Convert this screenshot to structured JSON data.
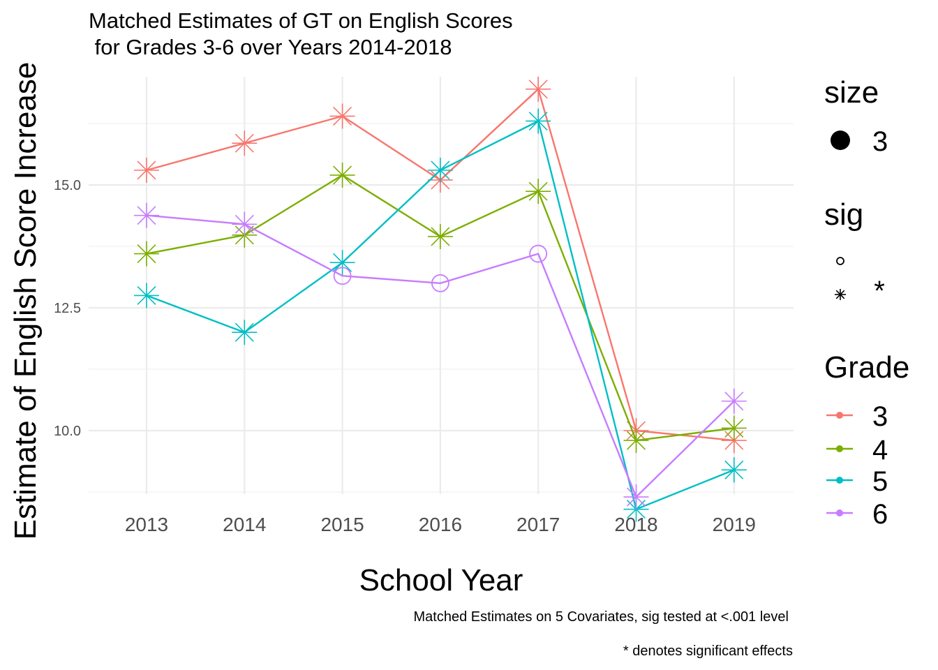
{
  "chart_data": {
    "type": "line",
    "title_line1": "Matched Estimates of GT on English Scores",
    "title_line2": " for Grades 3-6 over Years 2014-2018",
    "xlabel": "School Year",
    "ylabel": "Estimate of English Score Increase",
    "caption_line1": "Matched Estimates on 5 Covariates, sig tested at <.001 level",
    "caption_line2": "* denotes significant effects",
    "x": [
      2013,
      2014,
      2015,
      2016,
      2017,
      2018,
      2019
    ],
    "x_tick_labels": [
      "2013",
      "2014",
      "2015",
      "2016",
      "2017",
      "2018",
      "2019"
    ],
    "y_ticks": [
      10.0,
      12.5,
      15.0
    ],
    "y_tick_labels": [
      "10.0",
      "12.5",
      "15.0"
    ],
    "ylim": [
      8.4,
      17.8
    ],
    "grid": true,
    "legend_position": "right",
    "series": [
      {
        "name": "3",
        "color": "#F8766D",
        "values": [
          15.3,
          15.85,
          16.4,
          15.1,
          16.95,
          10.0,
          9.8
        ],
        "sig": [
          "*",
          "*",
          "*",
          "*",
          "*",
          "*",
          "*"
        ]
      },
      {
        "name": "4",
        "color": "#7CAE00",
        "values": [
          13.6,
          13.98,
          15.2,
          13.95,
          14.87,
          9.8,
          10.05
        ],
        "sig": [
          "*",
          "*",
          "*",
          "*",
          "*",
          "*",
          "*"
        ]
      },
      {
        "name": "5",
        "color": "#00BFC4",
        "values": [
          12.75,
          12.0,
          13.42,
          15.3,
          16.3,
          8.4,
          9.2
        ],
        "sig": [
          "*",
          "*",
          "*",
          "*",
          "*",
          "*",
          "*"
        ]
      },
      {
        "name": "6",
        "color": "#C77CFF",
        "values": [
          14.38,
          14.2,
          13.15,
          13.0,
          13.6,
          8.65,
          10.6
        ],
        "sig": [
          "*",
          "*",
          "o",
          "o",
          "o",
          "*",
          "*"
        ]
      }
    ],
    "legend": {
      "size_title": "size",
      "size_value": "3",
      "sig_title": "sig",
      "sig_values": [
        "",
        "*"
      ],
      "grade_title": "Grade",
      "grade_values": [
        "3",
        "4",
        "5",
        "6"
      ]
    }
  }
}
